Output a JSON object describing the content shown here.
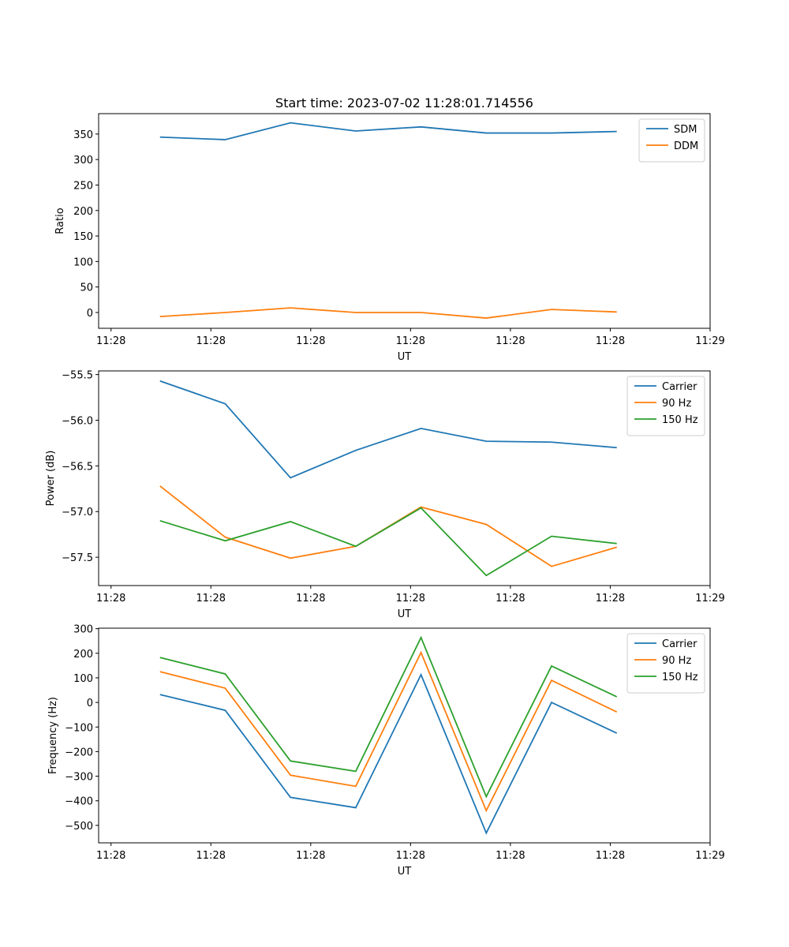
{
  "chart_data": [
    {
      "type": "line",
      "title": "Start time: 2023-07-02 11:28:01.714556",
      "xlabel": "UT",
      "ylabel": "Ratio",
      "x": [
        0,
        1,
        2,
        3,
        4,
        5,
        6,
        7
      ],
      "xlim": [
        -0.94,
        8.43
      ],
      "xticks": [
        -0.75,
        0.78,
        2.31,
        3.84,
        5.37,
        6.9,
        8.43
      ],
      "xticklabels": [
        "11:28",
        "11:28",
        "11:28",
        "11:28",
        "11:28",
        "11:28",
        "11:29"
      ],
      "ylim": [
        -31,
        390
      ],
      "yticks": [
        0,
        50,
        100,
        150,
        200,
        250,
        300,
        350
      ],
      "legend": "top-right",
      "series": [
        {
          "name": "SDM",
          "color": "#1f77b4",
          "values": [
            344,
            339,
            372,
            356,
            364,
            352,
            352,
            355
          ]
        },
        {
          "name": "DDM",
          "color": "#ff7f0e",
          "values": [
            -8,
            0,
            9,
            0,
            0,
            -11,
            6,
            1
          ]
        }
      ]
    },
    {
      "type": "line",
      "title": "",
      "xlabel": "UT",
      "ylabel": "Power (dB)",
      "x": [
        0,
        1,
        2,
        3,
        4,
        5,
        6,
        7
      ],
      "xlim": [
        -0.94,
        8.43
      ],
      "xticks": [
        -0.75,
        0.78,
        2.31,
        3.84,
        5.37,
        6.9,
        8.43
      ],
      "xticklabels": [
        "11:28",
        "11:28",
        "11:28",
        "11:28",
        "11:28",
        "11:28",
        "11:29"
      ],
      "ylim": [
        -57.81,
        -55.46
      ],
      "yticks": [
        -57.5,
        -57.0,
        -56.5,
        -56.0,
        -55.5
      ],
      "yticklabels": [
        "−57.5",
        "−57.0",
        "−56.5",
        "−56.0",
        "−55.5"
      ],
      "legend": "top-right",
      "series": [
        {
          "name": "Carrier",
          "color": "#1f77b4",
          "values": [
            -55.57,
            -55.82,
            -56.63,
            -56.33,
            -56.09,
            -56.23,
            -56.24,
            -56.3
          ]
        },
        {
          "name": "90 Hz",
          "color": "#ff7f0e",
          "values": [
            -56.72,
            -57.28,
            -57.51,
            -57.38,
            -56.95,
            -57.14,
            -57.6,
            -57.39
          ]
        },
        {
          "name": "150 Hz",
          "color": "#2ca02c",
          "values": [
            -57.1,
            -57.32,
            -57.11,
            -57.38,
            -56.96,
            -57.7,
            -57.27,
            -57.35
          ]
        }
      ]
    },
    {
      "type": "line",
      "title": "",
      "xlabel": "UT",
      "ylabel": "Frequency (Hz)",
      "x": [
        0,
        1,
        2,
        3,
        4,
        5,
        6,
        7
      ],
      "xlim": [
        -0.94,
        8.43
      ],
      "xticks": [
        -0.75,
        0.78,
        2.31,
        3.84,
        5.37,
        6.9,
        8.43
      ],
      "xticklabels": [
        "11:28",
        "11:28",
        "11:28",
        "11:28",
        "11:28",
        "11:28",
        "11:29"
      ],
      "ylim": [
        -571,
        302
      ],
      "yticks": [
        -500,
        -400,
        -300,
        -200,
        -100,
        0,
        100,
        200,
        300
      ],
      "yticklabels": [
        "−500",
        "−400",
        "−300",
        "−200",
        "−100",
        "0",
        "100",
        "200",
        "300"
      ],
      "legend": "top-right",
      "series": [
        {
          "name": "Carrier",
          "color": "#1f77b4",
          "values": [
            32,
            -32,
            -386,
            -428,
            113,
            -531,
            0,
            -125
          ]
        },
        {
          "name": "90 Hz",
          "color": "#ff7f0e",
          "values": [
            125,
            58,
            -296,
            -341,
            203,
            -440,
            90,
            -39
          ]
        },
        {
          "name": "150 Hz",
          "color": "#2ca02c",
          "values": [
            183,
            116,
            -238,
            -280,
            264,
            -383,
            148,
            23
          ]
        }
      ]
    }
  ]
}
